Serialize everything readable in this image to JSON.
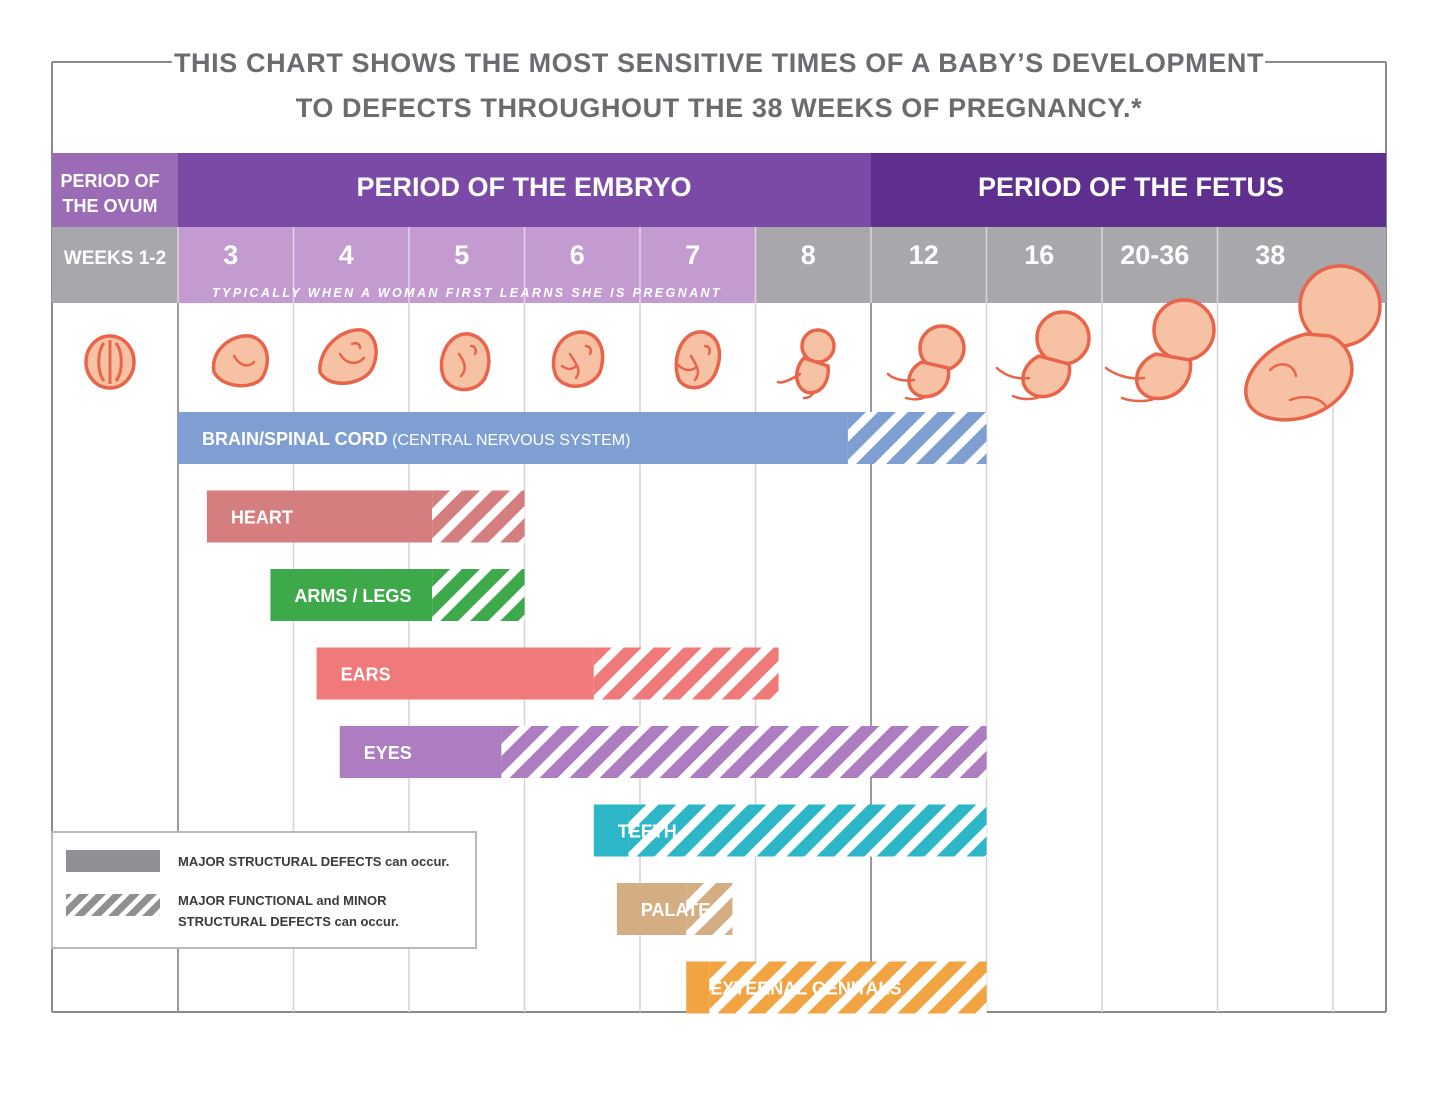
{
  "title": {
    "line1": "THIS CHART SHOWS THE MOST SENSITIVE TIMES OF A BABY’S DEVELOPMENT",
    "line2": "TO DEFECTS THROUGHOUT THE 38 WEEKS OF PREGNANCY.*"
  },
  "periods": {
    "ovum_line1": "PERIOD OF",
    "ovum_line2": "THE OVUM",
    "embryo": "PERIOD OF THE EMBRYO",
    "fetus": "PERIOD OF THE FETUS"
  },
  "weeks_label": "WEEKS 1-2",
  "pregnancy_note": "TYPICALLY WHEN A WOMAN FIRST LEARNS SHE IS PREGNANT",
  "legend": {
    "solid": "MAJOR STRUCTURAL DEFECTS can occur.",
    "hatched_line1": "MAJOR FUNCTIONAL and MINOR",
    "hatched_line2": "STRUCTURAL DEFECTS can occur."
  },
  "colors": {
    "ovum_header": "#9b6bb5",
    "embryo_header": "#7a4aa6",
    "fetus_header": "#5e2f8e",
    "week_light": "#c39bd0",
    "week_gray": "#a7a7ac",
    "embryo_fill": "#f7c2a4",
    "embryo_outline": "#e8644a"
  },
  "chart_data": {
    "type": "gantt",
    "title": "THIS CHART SHOWS THE MOST SENSITIVE TIMES OF A BABY’S DEVELOPMENT TO DEFECTS THROUGHOUT THE 38 WEEKS OF PREGNANCY.*",
    "weeks": [
      "3",
      "4",
      "5",
      "6",
      "7",
      "8",
      "12",
      "16",
      "20-36",
      "38"
    ],
    "series": [
      {
        "name": "BRAIN/SPINAL CORD",
        "suffix": " (CENTRAL NERVOUS SYSTEM)",
        "color": "#7f9fd2",
        "start": 3,
        "major_end": 8.8,
        "end": 10
      },
      {
        "name": "HEART",
        "suffix": "",
        "color": "#d47e7f",
        "start": 3.25,
        "major_end": 5.2,
        "end": 6
      },
      {
        "name": "ARMS / LEGS",
        "suffix": "",
        "color": "#3ea94a",
        "start": 3.8,
        "major_end": 5.2,
        "end": 6
      },
      {
        "name": "EARS",
        "suffix": "",
        "color": "#f0797a",
        "start": 4.2,
        "major_end": 6.6,
        "end": 8.2
      },
      {
        "name": "EYES",
        "suffix": "",
        "color": "#ae7cc0",
        "start": 4.4,
        "major_end": 5.8,
        "end": 10
      },
      {
        "name": "TEETH",
        "suffix": "",
        "color": "#2cb6c8",
        "start": 6.6,
        "major_end": 6.9,
        "end": 10
      },
      {
        "name": "PALATE",
        "suffix": "",
        "color": "#d5ad82",
        "start": 6.8,
        "major_end": 7.4,
        "end": 7.8
      },
      {
        "name": "EXTERNAL GENITALS",
        "suffix": "",
        "color": "#f2a342",
        "start": 7.4,
        "major_end": 7.6,
        "end": 10
      }
    ]
  }
}
